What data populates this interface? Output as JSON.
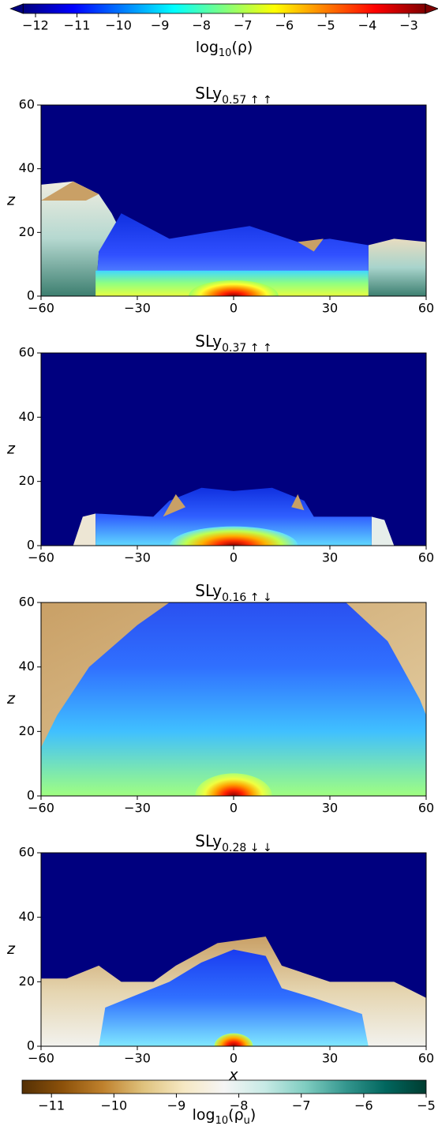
{
  "chart_data": [
    {
      "type": "colorbar",
      "label": [
        "log",
        "10",
        "(ρ)"
      ],
      "xlim": [
        -12.3,
        -2.6
      ],
      "extend": "both",
      "colors": [
        "#00007f",
        "#0000ff",
        "#007fff",
        "#00ffff",
        "#7fff7f",
        "#ffff00",
        "#ff7f00",
        "#ff0000",
        "#7f0000"
      ],
      "ticks": [
        {
          "value": -12,
          "label": "−12"
        },
        {
          "value": -11,
          "label": "−11"
        },
        {
          "value": -10,
          "label": "−10"
        },
        {
          "value": -9,
          "label": "−9"
        },
        {
          "value": -8,
          "label": "−8"
        },
        {
          "value": -7,
          "label": "−7"
        },
        {
          "value": -6,
          "label": "−6"
        },
        {
          "value": -5,
          "label": "−5"
        },
        {
          "value": -4,
          "label": "−4"
        },
        {
          "value": -3,
          "label": "−3"
        }
      ]
    },
    {
      "type": "heatmap",
      "title": "SLy",
      "title_sub": "0.57 ↑ ↑",
      "ylabel": "z",
      "xlim": [
        -60,
        60
      ],
      "xticks": [
        {
          "value": -60,
          "label": "−60"
        },
        {
          "value": -30,
          "label": "−30"
        },
        0,
        30,
        60
      ],
      "ylim": [
        0,
        60
      ],
      "yticks": [
        0,
        20,
        40,
        60
      ]
    },
    {
      "type": "heatmap",
      "title": "SLy",
      "title_sub": "0.37 ↑ ↑",
      "ylabel": "z",
      "xlim": [
        -60,
        60
      ],
      "xticks": [
        {
          "value": -60,
          "label": "−60"
        },
        {
          "value": -30,
          "label": "−30"
        },
        0,
        30,
        60
      ],
      "ylim": [
        0,
        60
      ],
      "yticks": [
        0,
        20,
        40,
        60
      ]
    },
    {
      "type": "heatmap",
      "title": "SLy",
      "title_sub": "0.16 ↑ ↓",
      "ylabel": "z",
      "xlim": [
        -60,
        60
      ],
      "xticks": [
        {
          "value": -60,
          "label": "−60"
        },
        {
          "value": -30,
          "label": "−30"
        },
        0,
        30,
        60
      ],
      "ylim": [
        0,
        60
      ],
      "yticks": [
        0,
        20,
        40,
        60
      ]
    },
    {
      "type": "heatmap",
      "title": "SLy",
      "title_sub": "0.28 ↓ ↓",
      "ylabel": "z",
      "xlabel": "x",
      "xlim": [
        -60,
        60
      ],
      "xticks": [
        {
          "value": -60,
          "label": "−60"
        },
        {
          "value": -30,
          "label": "−30"
        },
        0,
        30,
        60
      ],
      "ylim": [
        0,
        60
      ],
      "yticks": [
        0,
        20,
        40,
        60
      ]
    },
    {
      "type": "colorbar",
      "label": [
        "log",
        "10",
        "(ρ",
        "u",
        ")"
      ],
      "xlim": [
        -11.47,
        -5
      ],
      "extend": "neither",
      "colors": [
        "#543005",
        "#8c510a",
        "#bf812d",
        "#dfc27d",
        "#f6e8c3",
        "#f5f5f5",
        "#c7eae5",
        "#80cdc1",
        "#35978f",
        "#01665e",
        "#003c30"
      ],
      "ticks": [
        {
          "value": -11,
          "label": "−11"
        },
        {
          "value": -10,
          "label": "−10"
        },
        {
          "value": -9,
          "label": "−9"
        },
        {
          "value": -8,
          "label": "−8"
        },
        {
          "value": -7,
          "label": "−7"
        },
        {
          "value": -6,
          "label": "−6"
        },
        {
          "value": -5,
          "label": "−5"
        }
      ]
    }
  ]
}
